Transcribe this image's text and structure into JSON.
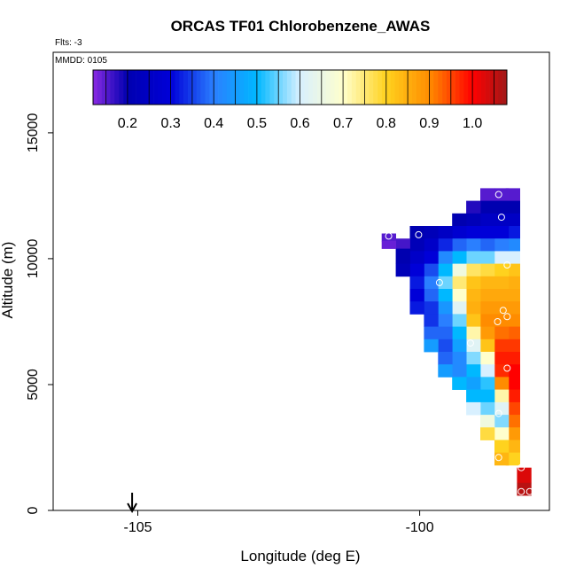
{
  "chart_data": {
    "type": "heatmap",
    "title": "ORCAS TF01 Chlorobenzene_AWAS",
    "flts_label": "Flts: -3",
    "mmdd_label": "MMDD: 0105",
    "xlabel": "Longitude (deg E)",
    "ylabel": "Altitude (m)",
    "xlim": [
      -106.5,
      -97.7
    ],
    "ylim": [
      0,
      18200
    ],
    "x_ticks": [
      {
        "value": -105,
        "label": "-105"
      },
      {
        "value": -100,
        "label": "-100"
      }
    ],
    "y_ticks": [
      {
        "value": 0,
        "label": "0"
      },
      {
        "value": 5000,
        "label": "5000"
      },
      {
        "value": 10000,
        "label": "10000"
      },
      {
        "value": 15000,
        "label": "15000"
      }
    ],
    "colorbar": {
      "range": [
        0.12,
        1.08
      ],
      "ticks": [
        {
          "value": 0.2,
          "label": "0.2"
        },
        {
          "value": 0.3,
          "label": "0.3"
        },
        {
          "value": 0.4,
          "label": "0.4"
        },
        {
          "value": 0.5,
          "label": "0.5"
        },
        {
          "value": 0.6,
          "label": "0.6"
        },
        {
          "value": 0.7,
          "label": "0.7"
        },
        {
          "value": 0.8,
          "label": "0.8"
        },
        {
          "value": 0.9,
          "label": "0.9"
        },
        {
          "value": 1.0,
          "label": "1.0"
        }
      ],
      "color_stops": [
        {
          "value": 0.12,
          "color": "#8a2be2"
        },
        {
          "value": 0.2,
          "color": "#0000b0"
        },
        {
          "value": 0.3,
          "color": "#0000d8"
        },
        {
          "value": 0.4,
          "color": "#2a7fff"
        },
        {
          "value": 0.5,
          "color": "#00b8ff"
        },
        {
          "value": 0.6,
          "color": "#d8f0ff"
        },
        {
          "value": 0.7,
          "color": "#ffffcc"
        },
        {
          "value": 0.8,
          "color": "#ffd21e"
        },
        {
          "value": 0.9,
          "color": "#ff8c00"
        },
        {
          "value": 1.0,
          "color": "#ff0000"
        },
        {
          "value": 1.08,
          "color": "#a01818"
        }
      ]
    },
    "arrow_longitude": -105.1,
    "cells": [
      {
        "lon": -98.35,
        "columns": [
          [
            12300,
            12800,
            0.15
          ],
          [
            11800,
            12300,
            0.2
          ],
          [
            11300,
            11800,
            0.25
          ],
          [
            10800,
            11300,
            0.32
          ],
          [
            10300,
            10800,
            0.42
          ],
          [
            9800,
            10300,
            0.6
          ],
          [
            9300,
            9800,
            0.82
          ],
          [
            8800,
            9300,
            0.85
          ],
          [
            8300,
            8800,
            0.86
          ],
          [
            7800,
            8300,
            0.88
          ],
          [
            7300,
            7800,
            0.9
          ],
          [
            6800,
            7300,
            0.93
          ],
          [
            6300,
            6800,
            0.96
          ],
          [
            5800,
            6300,
            0.98
          ],
          [
            5300,
            5800,
            1.0
          ],
          [
            4800,
            5300,
            1.0
          ],
          [
            4300,
            4800,
            0.98
          ],
          [
            3800,
            4300,
            0.95
          ],
          [
            3300,
            3800,
            0.92
          ],
          [
            2800,
            3300,
            0.88
          ],
          [
            2300,
            2800,
            0.84
          ],
          [
            1800,
            2300,
            0.8
          ]
        ]
      },
      {
        "lon": -98.55,
        "columns": [
          [
            12300,
            12800,
            0.15
          ],
          [
            11800,
            12300,
            0.2
          ],
          [
            11300,
            11800,
            0.25
          ],
          [
            10800,
            11300,
            0.3
          ],
          [
            10300,
            10800,
            0.4
          ],
          [
            9800,
            10300,
            0.6
          ],
          [
            9300,
            9800,
            0.8
          ],
          [
            8800,
            9300,
            0.84
          ],
          [
            8300,
            8800,
            0.86
          ],
          [
            7800,
            8300,
            0.88
          ],
          [
            7300,
            7800,
            0.9
          ],
          [
            6800,
            7300,
            0.92
          ],
          [
            6300,
            6800,
            0.96
          ],
          [
            5800,
            6300,
            0.98
          ],
          [
            5300,
            5800,
            0.97
          ],
          [
            4800,
            5300,
            0.9
          ],
          [
            4300,
            4800,
            0.72
          ],
          [
            3800,
            4300,
            0.62
          ],
          [
            3300,
            3800,
            0.56
          ],
          [
            2800,
            3300,
            0.7
          ],
          [
            2300,
            2800,
            0.8
          ],
          [
            1800,
            2300,
            0.84
          ]
        ]
      },
      {
        "lon": -98.8,
        "columns": [
          [
            12300,
            12800,
            0.15
          ],
          [
            11800,
            12300,
            0.2
          ],
          [
            11300,
            11800,
            0.25
          ],
          [
            10800,
            11300,
            0.3
          ],
          [
            10300,
            10800,
            0.38
          ],
          [
            9800,
            10300,
            0.55
          ],
          [
            9300,
            9800,
            0.78
          ],
          [
            8800,
            9300,
            0.84
          ],
          [
            8300,
            8800,
            0.86
          ],
          [
            7800,
            8300,
            0.88
          ],
          [
            7300,
            7800,
            0.9
          ],
          [
            6800,
            7300,
            0.88
          ],
          [
            6300,
            6800,
            0.82
          ],
          [
            5800,
            6300,
            0.7
          ],
          [
            5300,
            5800,
            0.6
          ],
          [
            4800,
            5300,
            0.52
          ],
          [
            4300,
            4800,
            0.5
          ],
          [
            3800,
            4300,
            0.55
          ],
          [
            3300,
            3800,
            0.66
          ],
          [
            2800,
            3300,
            0.78
          ]
        ]
      },
      {
        "lon": -99.05,
        "columns": [
          [
            11800,
            12300,
            0.18
          ],
          [
            11300,
            11800,
            0.22
          ],
          [
            10800,
            11300,
            0.3
          ],
          [
            10300,
            10800,
            0.4
          ],
          [
            9800,
            10300,
            0.55
          ],
          [
            9300,
            9800,
            0.76
          ],
          [
            8800,
            9300,
            0.82
          ],
          [
            8300,
            8800,
            0.84
          ],
          [
            7800,
            8300,
            0.85
          ],
          [
            7300,
            7800,
            0.82
          ],
          [
            6800,
            7300,
            0.72
          ],
          [
            6300,
            6800,
            0.62
          ],
          [
            5800,
            6300,
            0.56
          ],
          [
            5300,
            5800,
            0.5
          ],
          [
            4800,
            5300,
            0.46
          ],
          [
            4300,
            4800,
            0.5
          ],
          [
            3800,
            4300,
            0.6
          ]
        ]
      },
      {
        "lon": -99.3,
        "columns": [
          [
            11300,
            11800,
            0.2
          ],
          [
            10800,
            11300,
            0.28
          ],
          [
            10300,
            10800,
            0.38
          ],
          [
            9800,
            10300,
            0.5
          ],
          [
            9300,
            9800,
            0.66
          ],
          [
            8800,
            9300,
            0.75
          ],
          [
            8300,
            8800,
            0.7
          ],
          [
            7800,
            8300,
            0.62
          ],
          [
            7300,
            7800,
            0.55
          ],
          [
            6800,
            7300,
            0.5
          ],
          [
            6300,
            6800,
            0.46
          ],
          [
            5800,
            6300,
            0.42
          ],
          [
            5300,
            5800,
            0.42
          ],
          [
            4800,
            5300,
            0.5
          ]
        ]
      },
      {
        "lon": -99.55,
        "columns": [
          [
            10800,
            11300,
            0.25
          ],
          [
            10300,
            10800,
            0.33
          ],
          [
            9800,
            10300,
            0.42
          ],
          [
            9300,
            9800,
            0.5
          ],
          [
            8800,
            9300,
            0.55
          ],
          [
            8300,
            8800,
            0.5
          ],
          [
            7800,
            8300,
            0.44
          ],
          [
            7300,
            7800,
            0.4
          ],
          [
            6800,
            7300,
            0.38
          ],
          [
            6300,
            6800,
            0.36
          ],
          [
            5800,
            6300,
            0.38
          ],
          [
            5300,
            5800,
            0.45
          ]
        ]
      },
      {
        "lon": -99.8,
        "columns": [
          [
            10800,
            11300,
            0.22
          ],
          [
            10300,
            10800,
            0.26
          ],
          [
            9800,
            10300,
            0.3
          ],
          [
            9300,
            9800,
            0.36
          ],
          [
            8800,
            9300,
            0.4
          ],
          [
            8300,
            8800,
            0.38
          ],
          [
            7800,
            8300,
            0.34
          ],
          [
            7300,
            7800,
            0.34
          ],
          [
            6800,
            7300,
            0.38
          ],
          [
            6300,
            6800,
            0.45
          ]
        ]
      },
      {
        "lon": -100.05,
        "columns": [
          [
            10800,
            11300,
            0.2
          ],
          [
            10300,
            10800,
            0.22
          ],
          [
            9800,
            10300,
            0.26
          ],
          [
            9300,
            9800,
            0.3
          ],
          [
            8800,
            9300,
            0.32
          ],
          [
            8300,
            8800,
            0.3
          ],
          [
            7800,
            8300,
            0.32
          ]
        ]
      },
      {
        "lon": -100.3,
        "columns": [
          [
            10400,
            10800,
            0.16
          ],
          [
            9800,
            10400,
            0.2
          ],
          [
            9300,
            9800,
            0.22
          ]
        ]
      },
      {
        "lon": -100.55,
        "columns": [
          [
            10700,
            11000,
            0.15
          ],
          [
            10400,
            10700,
            0.14
          ]
        ]
      },
      {
        "lon": -98.15,
        "columns": [
          [
            1100,
            1700,
            1.03
          ],
          [
            600,
            1100,
            1.06
          ]
        ]
      }
    ],
    "sample_points": [
      {
        "lon": -98.6,
        "alt": 12550
      },
      {
        "lon": -99.25,
        "alt": 12500
      },
      {
        "lon": -98.55,
        "alt": 11650
      },
      {
        "lon": -100.55,
        "alt": 10900
      },
      {
        "lon": -100.02,
        "alt": 10950
      },
      {
        "lon": -98.45,
        "alt": 9750
      },
      {
        "lon": -99.65,
        "alt": 9050
      },
      {
        "lon": -98.52,
        "alt": 7950
      },
      {
        "lon": -98.45,
        "alt": 7700
      },
      {
        "lon": -98.62,
        "alt": 7500
      },
      {
        "lon": -99.1,
        "alt": 6650
      },
      {
        "lon": -98.45,
        "alt": 5650
      },
      {
        "lon": -98.6,
        "alt": 3850
      },
      {
        "lon": -98.6,
        "alt": 2100
      },
      {
        "lon": -98.2,
        "alt": 1700
      },
      {
        "lon": -98.2,
        "alt": 750
      },
      {
        "lon": -98.05,
        "alt": 750
      },
      {
        "lon": -98.45,
        "alt": 750
      },
      {
        "lon": -98.55,
        "alt": 750
      },
      {
        "lon": -98.55,
        "alt": 700
      }
    ]
  }
}
